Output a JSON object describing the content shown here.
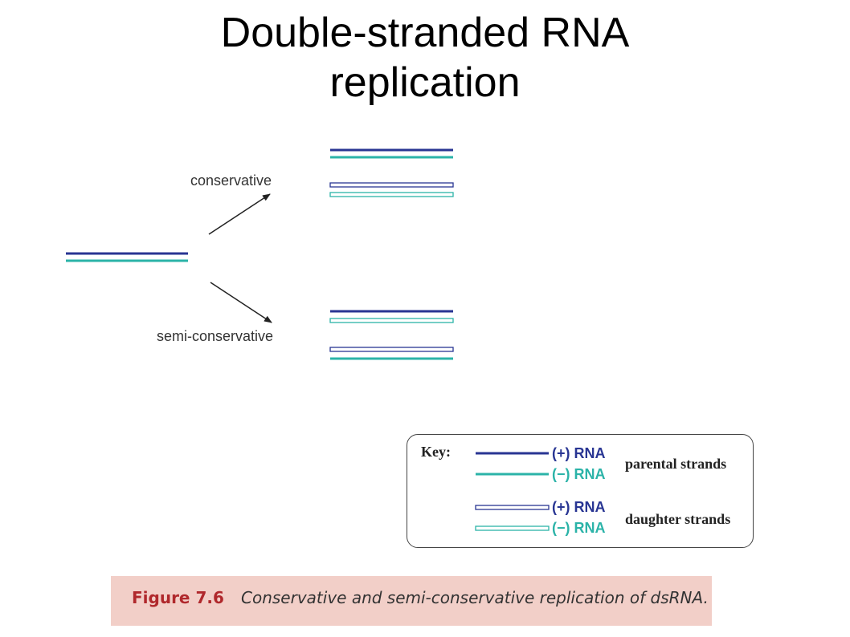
{
  "title": {
    "line1": "Double-stranded RNA",
    "line2": "replication"
  },
  "diagram": {
    "labels": {
      "conservative": "conservative",
      "semi_conservative": "semi-conservative"
    }
  },
  "key": {
    "heading": "Key:",
    "plus_rna": "(+) RNA",
    "minus_rna": "(−) RNA",
    "parental": "parental strands",
    "daughter": "daughter strands"
  },
  "caption": {
    "figure": "Figure 7.6",
    "text": "Conservative and semi-conservative replication of dsRNA."
  },
  "colors": {
    "plus_strand": "#283593",
    "minus_strand": "#2bb3a8",
    "arrow": "#222222"
  }
}
